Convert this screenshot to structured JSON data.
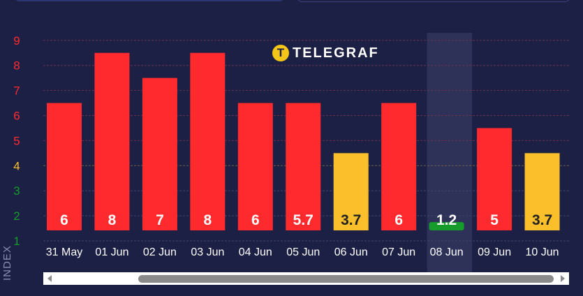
{
  "brand": {
    "logo_letter": "T",
    "name": "TELEGRAF"
  },
  "chart_data": {
    "type": "bar",
    "title": "",
    "xlabel": "",
    "ylabel": "INDEX",
    "ylim": [
      1,
      9.3
    ],
    "yticks": [
      1,
      2,
      3,
      4,
      5,
      6,
      7,
      8,
      9
    ],
    "categories": [
      "31 May",
      "01 Jun",
      "02 Jun",
      "03 Jun",
      "04 Jun",
      "05 Jun",
      "06 Jun",
      "07 Jun",
      "08 Jun",
      "09 Jun",
      "10 Jun"
    ],
    "values": [
      6,
      8,
      7,
      8,
      6,
      5.7,
      3.7,
      6,
      1.2,
      5,
      3.7
    ],
    "value_labels": [
      "6",
      "8",
      "7",
      "8",
      "6",
      "5.7",
      "3.7",
      "6",
      "1.2",
      "5",
      "3.7"
    ],
    "highlighted": "08 Jun",
    "grid": true,
    "colors": {
      "high": "#ff2a2e",
      "moderate": "#fbbf2c",
      "low": "#159c2a"
    }
  }
}
